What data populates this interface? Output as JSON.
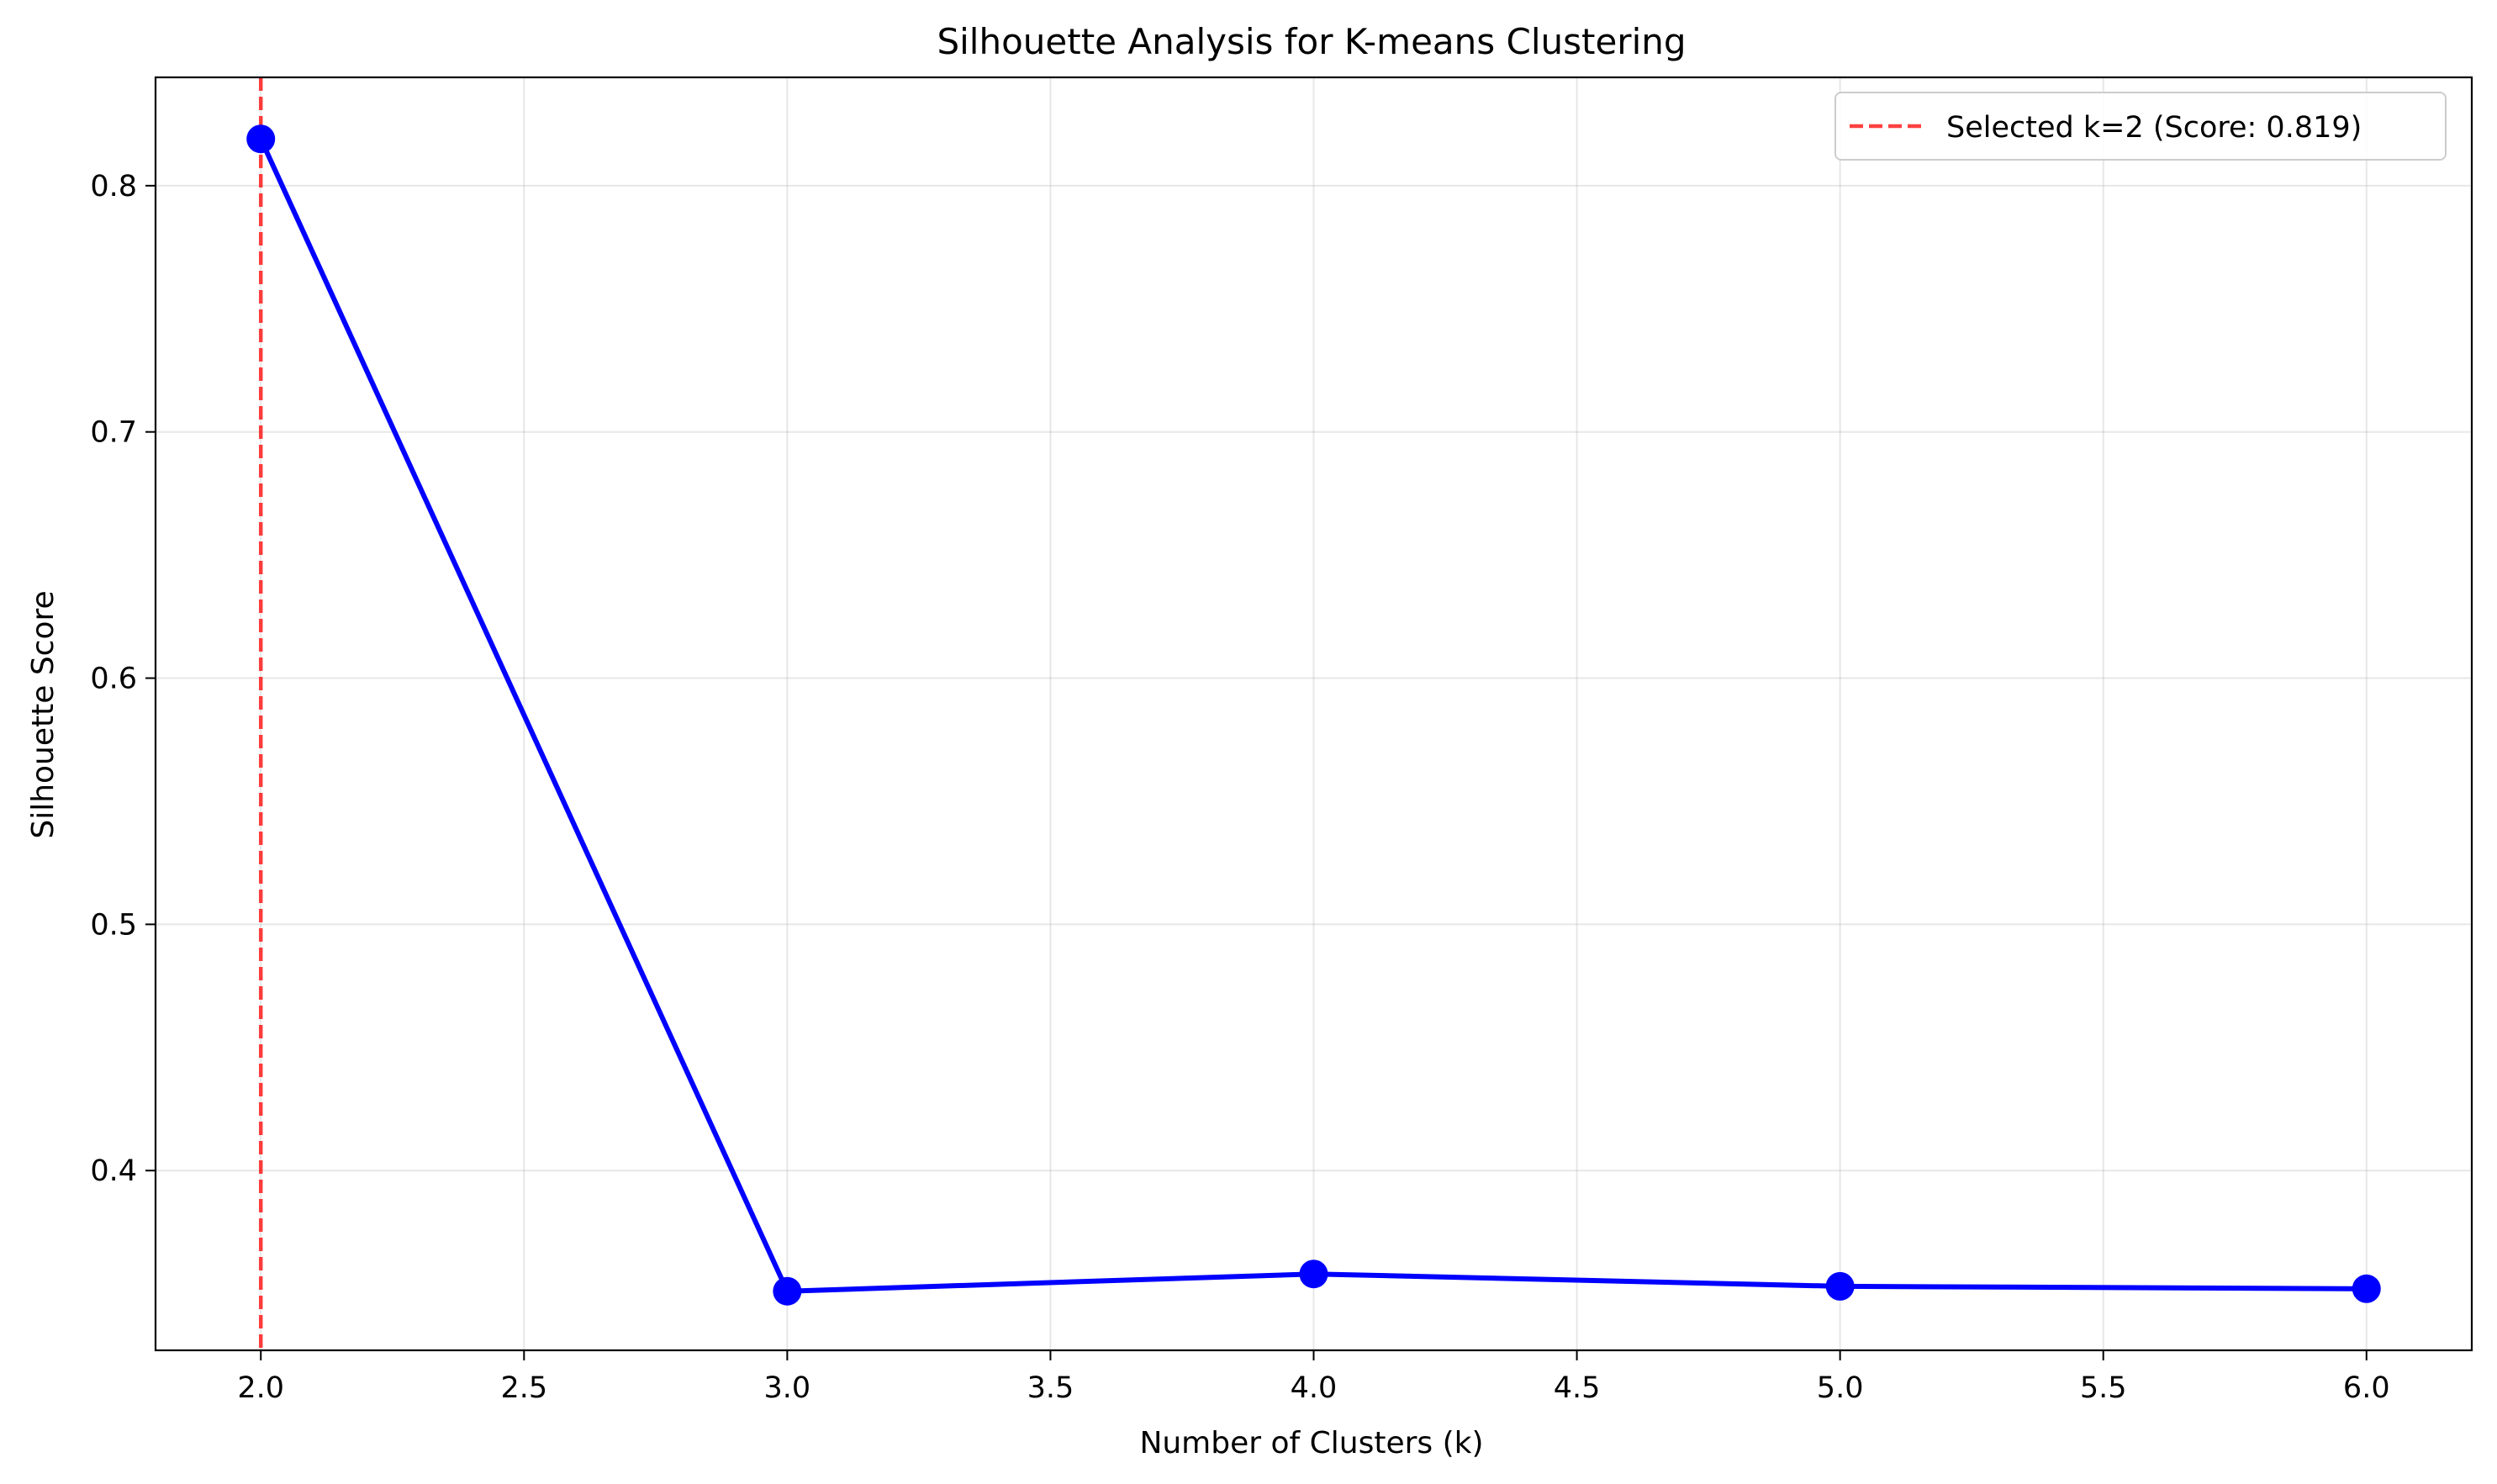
{
  "chart_data": {
    "type": "line",
    "title": "Silhouette Analysis for K-means Clustering",
    "xlabel": "Number of Clusters (k)",
    "ylabel": "Silhouette Score",
    "xlim": [
      1.8,
      6.2
    ],
    "ylim": [
      0.327,
      0.844
    ],
    "x_ticks": [
      2.0,
      2.5,
      3.0,
      3.5,
      4.0,
      4.5,
      5.0,
      5.5,
      6.0
    ],
    "x_tick_labels": [
      "2.0",
      "2.5",
      "3.0",
      "3.5",
      "4.0",
      "4.5",
      "5.0",
      "5.5",
      "6.0"
    ],
    "y_ticks": [
      0.4,
      0.5,
      0.6,
      0.7,
      0.8
    ],
    "y_tick_labels": [
      "0.4",
      "0.5",
      "0.6",
      "0.7",
      "0.8"
    ],
    "grid": true,
    "legend_position": "top-right",
    "series": [
      {
        "color": "#0000ff",
        "x": [
          2,
          3,
          4,
          5,
          6
        ],
        "y": [
          0.819,
          0.351,
          0.358,
          0.353,
          0.352
        ]
      }
    ],
    "reference_lines": [
      {
        "orientation": "vertical",
        "x": 2,
        "style": "dashed",
        "color": "#ff0000",
        "label": "Selected k=2 (Score: 0.819)"
      }
    ]
  }
}
